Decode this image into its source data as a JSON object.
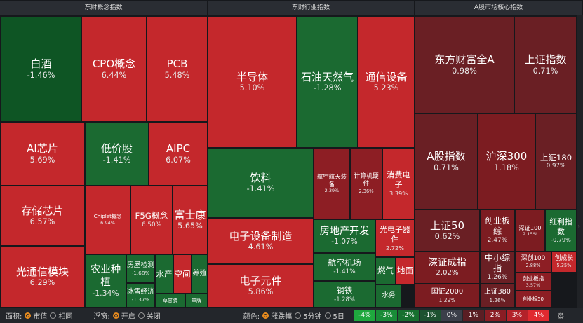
{
  "panels": [
    {
      "title": "东财概念指数",
      "tiles": [
        {
          "name": "白酒",
          "change": "-1.46%"
        },
        {
          "name": "CPO概念",
          "change": "6.44%"
        },
        {
          "name": "PCB",
          "change": "5.48%"
        },
        {
          "name": "AI芯片",
          "change": "5.69%"
        },
        {
          "name": "低价股",
          "change": "-1.41%"
        },
        {
          "name": "AIPC",
          "change": "6.07%"
        },
        {
          "name": "存储芯片",
          "change": "6.57%"
        },
        {
          "name": "光通信模块",
          "change": "6.29%"
        },
        {
          "name": "Chiplet概念",
          "change": "6.94%"
        },
        {
          "name": "F5G概念",
          "change": "6.50%"
        },
        {
          "name": "富士康",
          "change": "5.65%"
        },
        {
          "name": "农业种植",
          "change": "-1.34%"
        },
        {
          "name": "房屋检测",
          "change": "-1.68%"
        },
        {
          "name": "冰雪经济",
          "change": "-1.37%"
        },
        {
          "name": "水产"
        },
        {
          "name": "空间"
        },
        {
          "name": "养殖"
        },
        {
          "name": "草甘膦"
        },
        {
          "name": "举牌"
        }
      ]
    },
    {
      "title": "东财行业指数",
      "tiles": [
        {
          "name": "半导体",
          "change": "5.10%"
        },
        {
          "name": "石油天然气",
          "change": "-1.28%"
        },
        {
          "name": "通信设备",
          "change": "5.23%"
        },
        {
          "name": "饮料",
          "change": "-1.41%"
        },
        {
          "name": "电子设备制造",
          "change": "4.61%"
        },
        {
          "name": "电子元件",
          "change": "5.86%"
        },
        {
          "name": "航空航天装备",
          "change": "2.39%"
        },
        {
          "name": "计算机硬件",
          "change": "2.36%"
        },
        {
          "name": "消费电子",
          "change": "3.39%"
        },
        {
          "name": "房地产开发",
          "change": "-1.07%"
        },
        {
          "name": "光电子器件",
          "change": "2.72%"
        },
        {
          "name": "航空机场",
          "change": "-1.41%"
        },
        {
          "name": "钢铁",
          "change": "-1.28%"
        },
        {
          "name": "燃气"
        },
        {
          "name": "地面"
        },
        {
          "name": "水务"
        }
      ]
    },
    {
      "title": "A股市场核心指数",
      "tiles": [
        {
          "name": "东方财富全A",
          "change": "0.98%"
        },
        {
          "name": "上证指数",
          "change": "0.71%"
        },
        {
          "name": "A股指数",
          "change": "0.71%"
        },
        {
          "name": "沪深300",
          "change": "1.18%"
        },
        {
          "name": "上证180",
          "change": "0.97%"
        },
        {
          "name": "上证50",
          "change": "0.62%"
        },
        {
          "name": "深证成指",
          "change": "2.02%"
        },
        {
          "name": "国证2000",
          "change": "1.29%"
        },
        {
          "name": "创业板综",
          "change": "2.47%"
        },
        {
          "name": "深证100",
          "change": "2.15%"
        },
        {
          "name": "红利指数",
          "change": "-0.79%"
        },
        {
          "name": "中小综指",
          "change": "1.26%"
        },
        {
          "name": "上证380",
          "change": "1.26%"
        },
        {
          "name": "深创100",
          "change": "2.88%"
        },
        {
          "name": "创成长",
          "change": "5.35%"
        },
        {
          "name": "创业板指",
          "change": "3.57%"
        },
        {
          "name": "创业板50"
        }
      ]
    }
  ],
  "footer": {
    "area_label": "面积:",
    "area_options": [
      "市值",
      "相同"
    ],
    "float_label": "浮窗:",
    "float_options": [
      "开启",
      "关闭"
    ],
    "color_label": "颜色:",
    "color_options": [
      "涨跌幅",
      "5分钟",
      "5日"
    ],
    "legend": [
      "-4%",
      "-3%",
      "-2%",
      "-1%",
      "0%",
      "1%",
      "2%",
      "3%",
      "4%"
    ]
  }
}
